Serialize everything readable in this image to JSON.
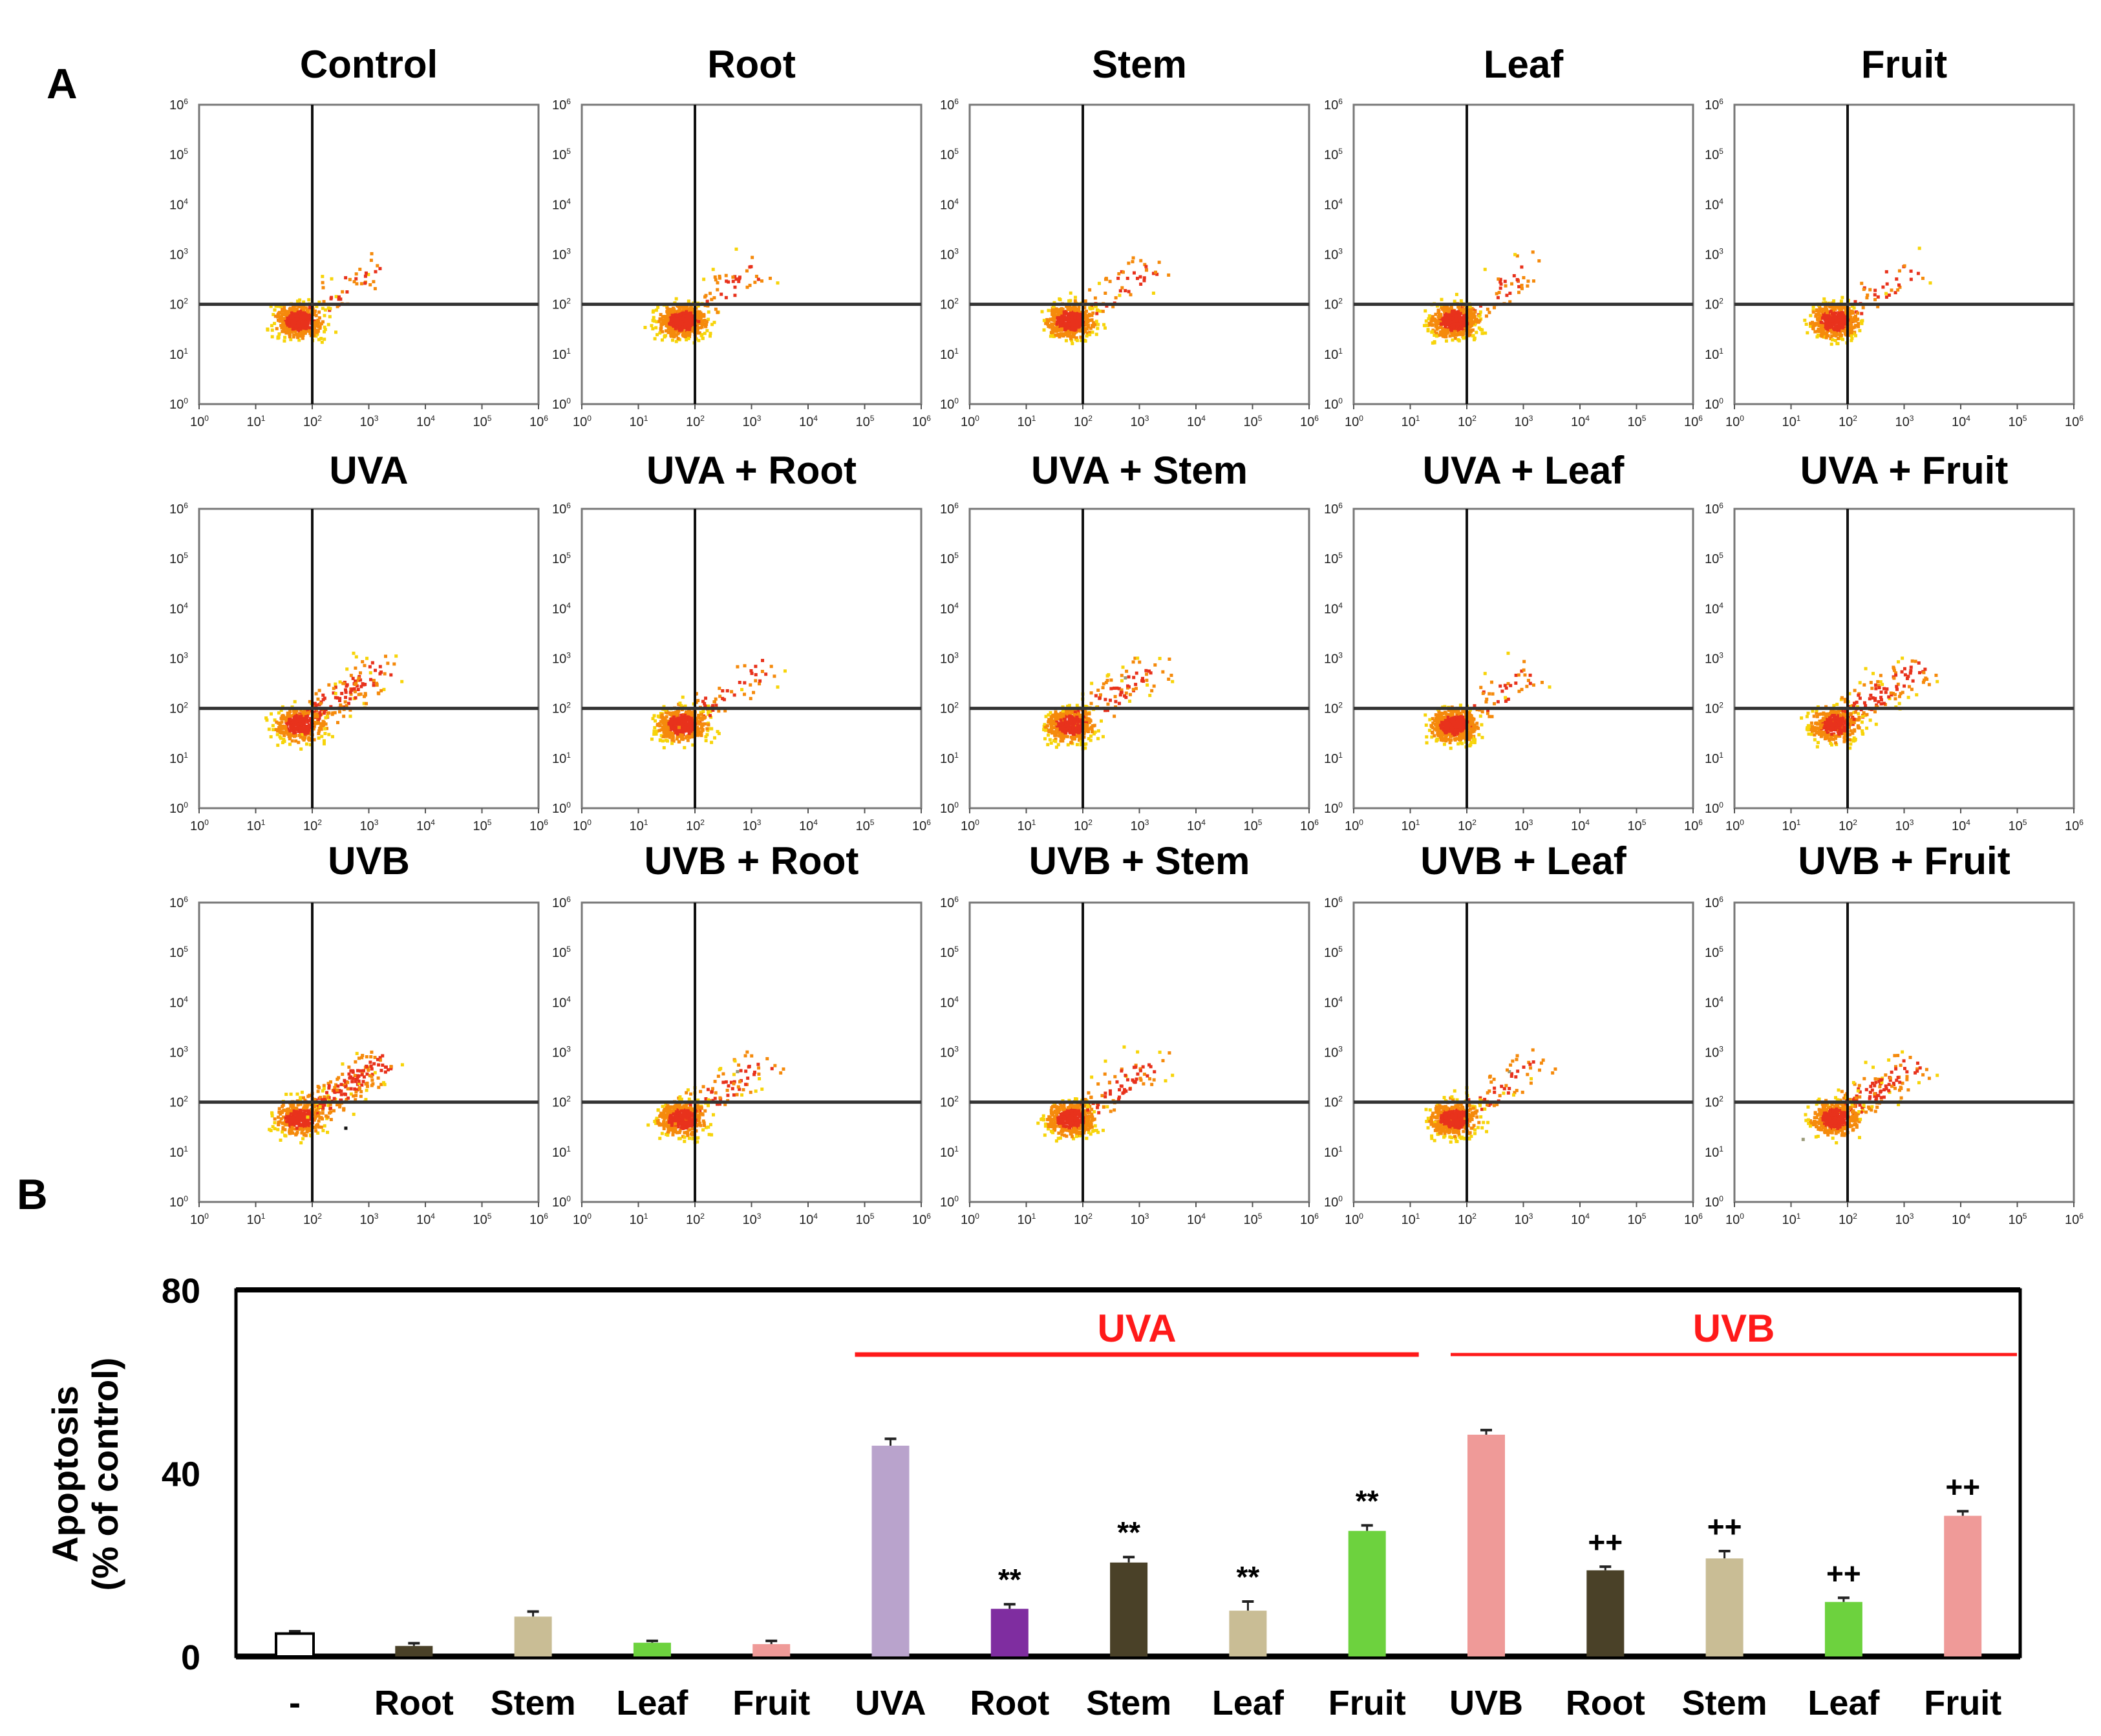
{
  "panel_labels": {
    "a": "A",
    "b": "B"
  },
  "chart_data": [
    {
      "type": "scatter",
      "description_kind": "flow cytometry dot plots (3x5 grid)",
      "panel_titles": [
        [
          "Control",
          "Root",
          "Stem",
          "Leaf",
          "Fruit"
        ],
        [
          "UVA",
          "UVA + Root",
          "UVA + Stem",
          "UVA + Leaf",
          "UVA + Fruit"
        ],
        [
          "UVB",
          "UVB + Root",
          "UVB + Stem",
          "UVB + Leaf",
          "UVB + Fruit"
        ]
      ],
      "x_ticks": [
        "0",
        "1",
        "2",
        "3",
        "4",
        "5",
        "6"
      ],
      "y_ticks": [
        "6",
        "5",
        "4",
        "3",
        "2",
        "1",
        "0"
      ],
      "tick_base": "10",
      "xlim_log10": [
        0,
        6
      ],
      "ylim_log10": [
        0,
        6
      ],
      "quadrant_gate_log10": [
        2,
        2
      ]
    },
    {
      "type": "bar",
      "categories": [
        "-",
        "Root",
        "Stem",
        "Leaf",
        "Fruit",
        "UVA",
        "Root",
        "Stem",
        "Leaf",
        "Fruit",
        "UVB",
        "Root",
        "Stem",
        "Leaf",
        "Fruit"
      ],
      "values": [
        5,
        2.3,
        8.7,
        3,
        2.7,
        46,
        10.4,
        20.5,
        10,
        27.4,
        48.4,
        18.8,
        21.4,
        11.9,
        30.7
      ],
      "errors": [
        0.5,
        0.6,
        1.1,
        0.4,
        0.7,
        1.5,
        1.0,
        1.2,
        2.0,
        1.2,
        1.0,
        0.8,
        1.6,
        0.9,
        1.0
      ],
      "colors": [
        "#ffffff",
        "#4a4128",
        "#c9bd95",
        "#6dd23e",
        "#ef9a98",
        "#b9a3cc",
        "#7f2da0",
        "#4a4128",
        "#c9bd95",
        "#6dd23e",
        "#ef9a98",
        "#4a4128",
        "#c9bd95",
        "#6dd23e",
        "#ef9a98"
      ],
      "annotations": [
        "",
        "",
        "",
        "",
        "",
        "",
        "**",
        "**",
        "**",
        "**",
        "",
        "++",
        "++",
        "++",
        "++"
      ],
      "groups": [
        {
          "label": "UVA",
          "from": 5,
          "to": 9
        },
        {
          "label": "UVB",
          "from": 10,
          "to": 14
        }
      ],
      "title": "",
      "xlabel": "",
      "ylabel": [
        "Apoptosis",
        "(% of control)"
      ],
      "ylim": [
        0,
        80
      ],
      "yticks": [
        "0",
        "40",
        "80"
      ],
      "group_color": "#ff1a1a"
    }
  ]
}
